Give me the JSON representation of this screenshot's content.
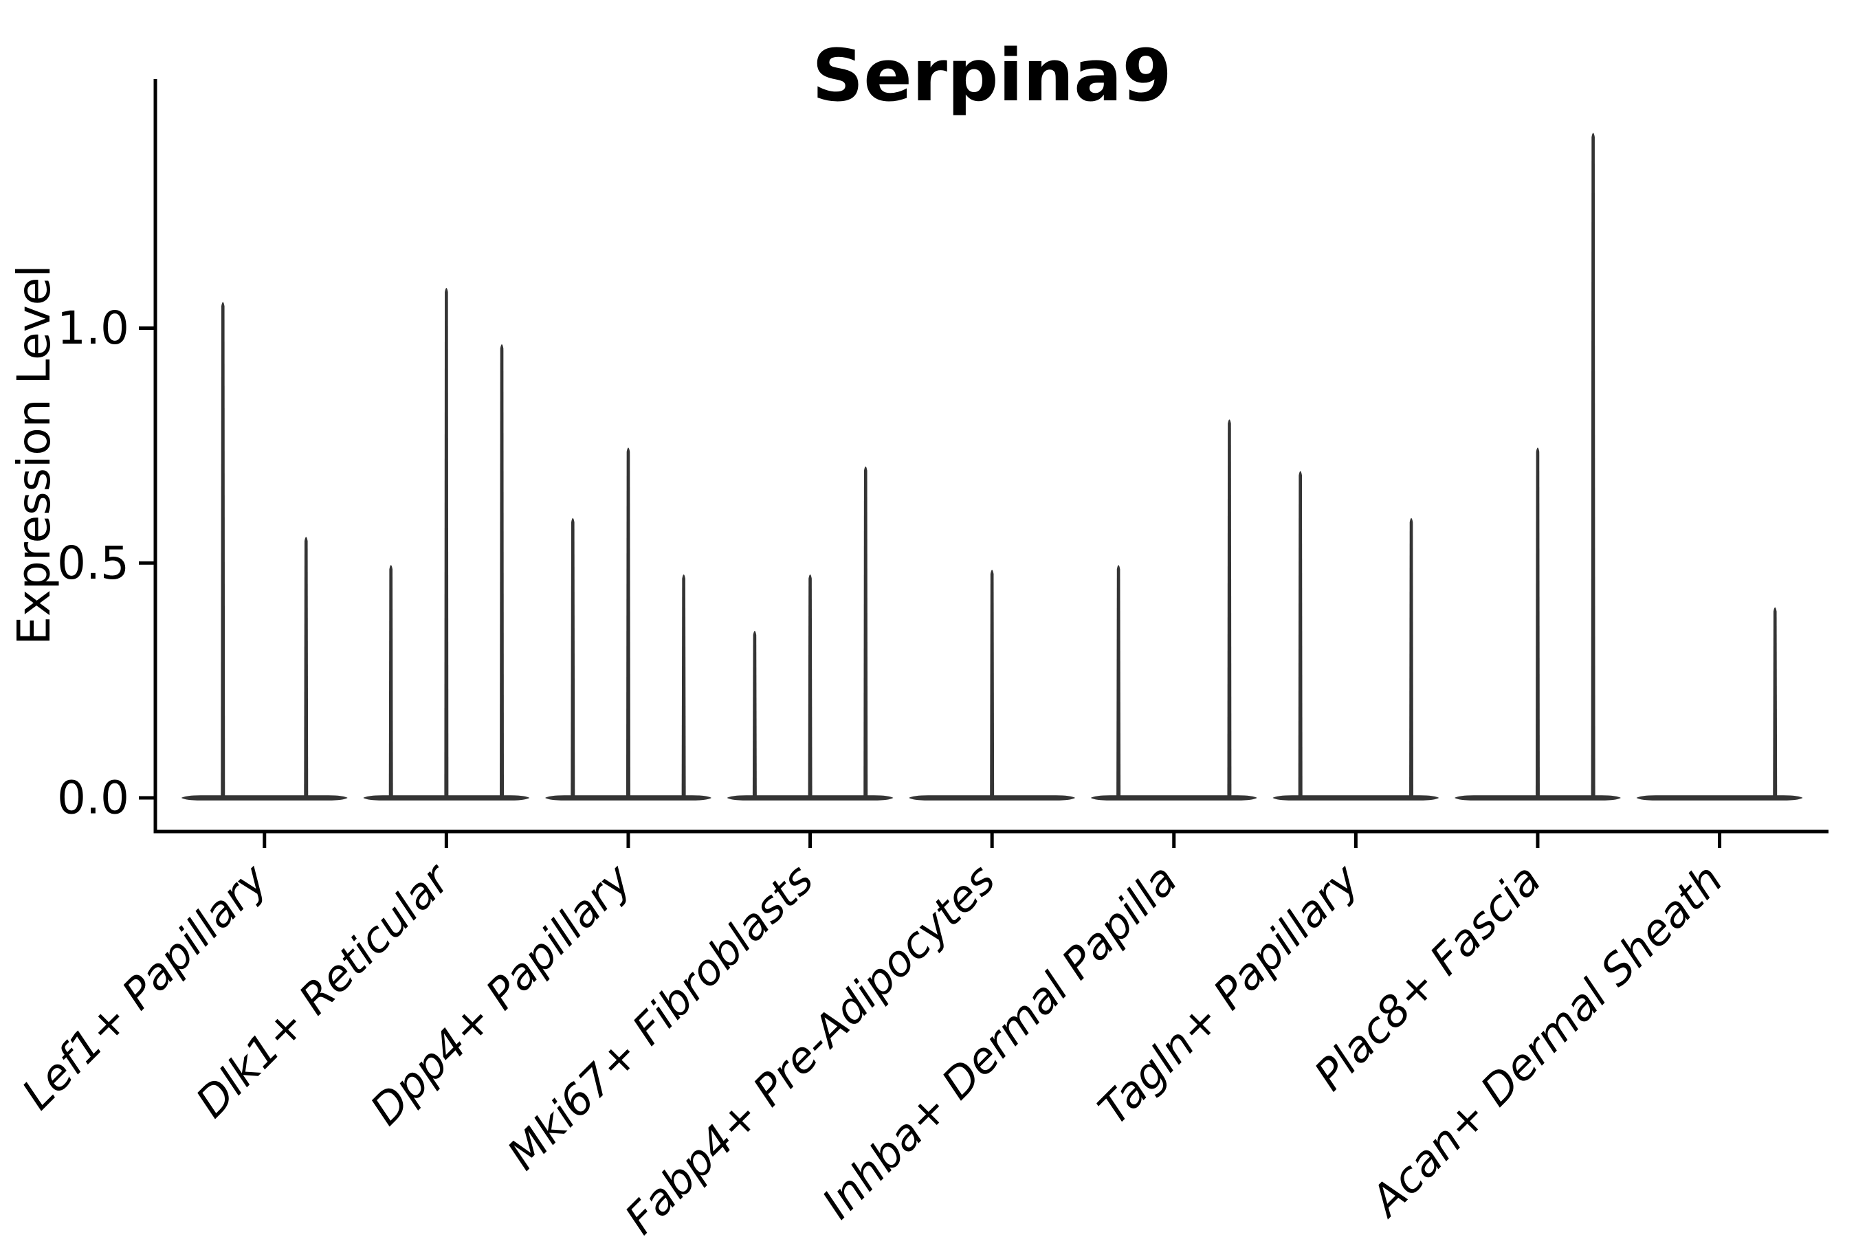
{
  "chart_data": {
    "type": "violin",
    "title": "Serpina9",
    "ylabel": "Expression Level",
    "xlabel": "",
    "yticks": [
      0.0,
      0.5,
      1.0
    ],
    "ytick_labels": [
      "0.0",
      "0.5",
      "1.0"
    ],
    "ylim": [
      0,
      1.53
    ],
    "grid": false,
    "legend": "none",
    "description": "Seurat-style violin plot; expression is near zero for most cells (flat violin bases at 0) with thin needle spikes reaching the maximum expression value per violin. Some identities contain multiple sub-violins (slots).",
    "categories": [
      {
        "label": "Lef1+ Papillary",
        "slots": 2,
        "peaks": [
          {
            "slot": 1,
            "value": 1.06
          },
          {
            "slot": 2,
            "value": 0.56
          }
        ]
      },
      {
        "label": "Dlk1+ Reticular",
        "slots": 3,
        "peaks": [
          {
            "slot": 1,
            "value": 0.5
          },
          {
            "slot": 2,
            "value": 1.09
          },
          {
            "slot": 3,
            "value": 0.97
          }
        ]
      },
      {
        "label": "Dpp4+ Papillary",
        "slots": 3,
        "peaks": [
          {
            "slot": 1,
            "value": 0.6
          },
          {
            "slot": 2,
            "value": 0.75
          },
          {
            "slot": 3,
            "value": 0.48
          }
        ]
      },
      {
        "label": "Mki67+ Fibroblasts",
        "slots": 3,
        "peaks": [
          {
            "slot": 1,
            "value": 0.36
          },
          {
            "slot": 2,
            "value": 0.48
          },
          {
            "slot": 3,
            "value": 0.71
          }
        ]
      },
      {
        "label": "Fabp4+ Pre-Adipocytes",
        "slots": 1,
        "peaks": [
          {
            "slot": 1,
            "value": 0.49
          }
        ]
      },
      {
        "label": "Inhba+ Dermal Papilla",
        "slots": 3,
        "peaks": [
          {
            "slot": 1,
            "value": 0.5
          },
          {
            "slot": 3,
            "value": 0.81
          }
        ]
      },
      {
        "label": "Tagln+ Papillary",
        "slots": 3,
        "peaks": [
          {
            "slot": 1,
            "value": 0.7
          },
          {
            "slot": 3,
            "value": 0.6
          }
        ]
      },
      {
        "label": "Plac8+ Fascia",
        "slots": 3,
        "peaks": [
          {
            "slot": 2,
            "value": 0.75
          },
          {
            "slot": 3,
            "value": 1.42
          }
        ]
      },
      {
        "label": "Acan+ Dermal Sheath",
        "slots": 3,
        "peaks": [
          {
            "slot": 3,
            "value": 0.41
          }
        ]
      }
    ],
    "colors": {
      "violin": "#343434",
      "axis": "#000000",
      "text": "#000000",
      "background": "#ffffff"
    }
  }
}
